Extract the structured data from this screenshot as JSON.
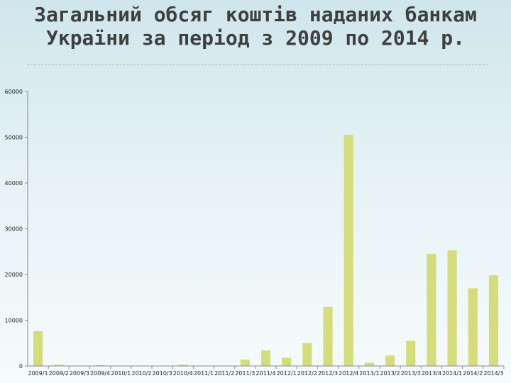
{
  "page": {
    "title": "Загальний обсяг коштів наданих банкам України за період з 2009 по 2014 р."
  },
  "chart_data": {
    "type": "bar",
    "title": "Загальний обсяг коштів наданих банкам України за період з 2009 по 2014 р.",
    "xlabel": "",
    "ylabel": "",
    "ylim": [
      0,
      60000
    ],
    "yticks": [
      0,
      10000,
      20000,
      30000,
      40000,
      50000,
      60000
    ],
    "ytick_labels": [
      "0",
      "10000",
      "20000",
      "30000",
      "40000",
      "50000",
      "60000"
    ],
    "grid": false,
    "legend": "none",
    "bar_color": "#d4dc7c",
    "categories": [
      "2009/1",
      "2009/2",
      "2009/3",
      "2009/4",
      "2010/1",
      "2010/2",
      "2010/3",
      "2010/4",
      "2011/1",
      "2011/2",
      "2011/3",
      "2011/4",
      "2012/1",
      "2012/2",
      "2012/3",
      "2012/4",
      "2013/1",
      "2013/2",
      "2013/3",
      "2013/4",
      "2014/1",
      "2014/2",
      "2014/3"
    ],
    "values": [
      7600,
      300,
      0,
      200,
      0,
      0,
      0,
      300,
      0,
      0,
      1400,
      3400,
      1800,
      5000,
      12900,
      50500,
      700,
      2300,
      5500,
      24500,
      25300,
      17000,
      19800
    ]
  }
}
